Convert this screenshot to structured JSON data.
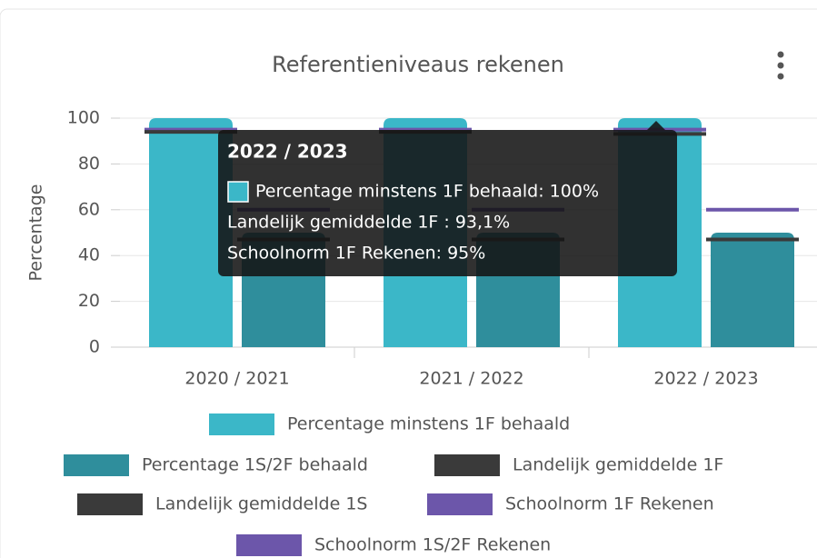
{
  "chart_data": {
    "type": "bar",
    "title": "Referentieniveaus rekenen",
    "y_label": "Percentage",
    "categories": [
      "2020 / 2021",
      "2021 / 2022",
      "2022 / 2023"
    ],
    "ylim": [
      0,
      100
    ],
    "yticks": [
      0,
      20,
      40,
      60,
      80,
      100
    ],
    "grid": true,
    "legend": "bottom",
    "series": [
      {
        "name": "Percentage minstens 1F behaald",
        "type": "bar",
        "color": "#3bb7c8",
        "values": [
          100,
          100,
          100
        ]
      },
      {
        "name": "Percentage 1S/2F behaald",
        "type": "bar",
        "color": "#2f8e9c",
        "values": [
          50,
          50,
          50
        ]
      },
      {
        "name": "Landelijk gemiddelde 1F",
        "type": "line",
        "color": "#3a3a3a",
        "values": [
          94,
          94,
          93.1
        ]
      },
      {
        "name": "Landelijk gemiddelde 1S",
        "type": "line",
        "color": "#3a3a3a",
        "values": [
          47,
          47,
          47
        ]
      },
      {
        "name": "Schoolnorm 1F Rekenen",
        "type": "line",
        "color": "#6c56aa",
        "values": [
          95,
          95,
          95
        ]
      },
      {
        "name": "Schoolnorm 1S/2F Rekenen",
        "type": "line",
        "color": "#6c56aa",
        "values": [
          60,
          60,
          60
        ]
      }
    ],
    "tooltip": {
      "lines": [
        "Percentage minstens 1F behaald: 100%",
        "Landelijk gemiddelde 1F : 93,1%",
        "Schoolnorm 1F Rekenen: 95%"
      ]
    }
  }
}
